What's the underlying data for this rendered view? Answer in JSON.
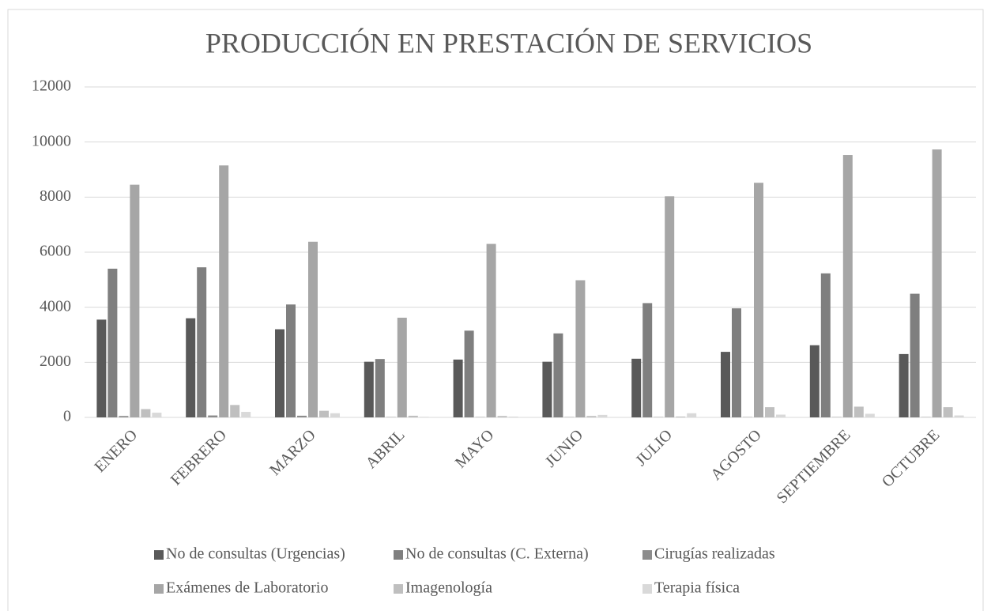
{
  "chart_data": {
    "type": "bar",
    "title": "PRODUCCIÓN EN PRESTACIÓN DE SERVICIOS",
    "categories": [
      "ENERO",
      "FEBRERO",
      "MARZO",
      "ABRIL",
      "MAYO",
      "JUNIO",
      "JULIO",
      "AGOSTO",
      "SEPTIEMBRE",
      "OCTUBRE"
    ],
    "series": [
      {
        "name": "No de consultas (Urgencias)",
        "color": "#595959",
        "values": [
          3550,
          3600,
          3200,
          2020,
          2100,
          2020,
          2130,
          2380,
          2620,
          2300
        ]
      },
      {
        "name": "No de consultas (C. Externa)",
        "color": "#7f7f7f",
        "values": [
          5400,
          5450,
          4100,
          2120,
          3150,
          3050,
          4150,
          3960,
          5230,
          4490
        ]
      },
      {
        "name": "Cirugías realizadas",
        "color": "#8c8c8c",
        "values": [
          50,
          70,
          60,
          10,
          10,
          10,
          10,
          10,
          10,
          10
        ]
      },
      {
        "name": "Exámenes de Laboratorio",
        "color": "#a6a6a6",
        "values": [
          8450,
          9150,
          6380,
          3620,
          6300,
          4980,
          8030,
          8520,
          9530,
          9730
        ]
      },
      {
        "name": "Imagenología",
        "color": "#bfbfbf",
        "values": [
          300,
          450,
          240,
          60,
          50,
          50,
          30,
          370,
          390,
          370
        ]
      },
      {
        "name": "Terapia física",
        "color": "#d9d9d9",
        "values": [
          170,
          200,
          150,
          20,
          30,
          90,
          150,
          100,
          130,
          70
        ]
      }
    ],
    "ylim": [
      0,
      12000
    ],
    "yticks": [
      0,
      2000,
      4000,
      6000,
      8000,
      10000,
      12000
    ],
    "grid": true,
    "legend": "bottom"
  }
}
